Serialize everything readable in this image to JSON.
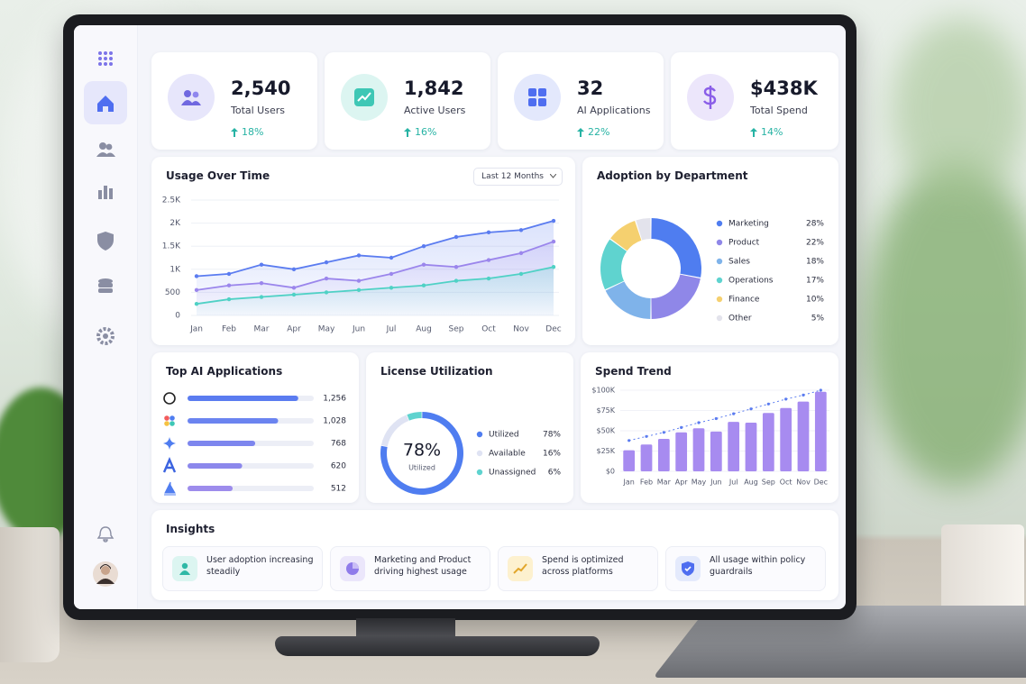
{
  "kpis": [
    {
      "value": "2,540",
      "label": "Total Users",
      "change": "18%"
    },
    {
      "value": "1,842",
      "label": "Active Users",
      "change": "16%"
    },
    {
      "value": "32",
      "label": "AI Applications",
      "change": "22%"
    },
    {
      "value": "$438K",
      "label": "Total Spend",
      "change": "14%"
    }
  ],
  "usage_over_time": {
    "type": "line",
    "title": "Usage Over Time",
    "range_selector": "Last 12 Months",
    "categories": [
      "Jan",
      "Feb",
      "Mar",
      "Apr",
      "May",
      "Jun",
      "Jul",
      "Aug",
      "Sep",
      "Oct",
      "Nov",
      "Dec"
    ],
    "series": [
      {
        "color": "#5b7cf0",
        "values": [
          850,
          900,
          1100,
          1000,
          1150,
          1300,
          1250,
          1500,
          1700,
          1800,
          1850,
          2050
        ]
      },
      {
        "color": "#9b86ec",
        "values": [
          550,
          650,
          700,
          600,
          800,
          750,
          900,
          1100,
          1050,
          1200,
          1350,
          1600
        ]
      },
      {
        "color": "#4fd1c5",
        "values": [
          250,
          350,
          400,
          450,
          500,
          550,
          600,
          650,
          750,
          800,
          900,
          1050
        ]
      }
    ],
    "ylim": [
      0,
      2500
    ],
    "yticks": [
      0,
      500,
      {
        "value": 1000,
        "label": "1K"
      },
      {
        "value": 1500,
        "label": "1.5K"
      },
      {
        "value": 2000,
        "label": "2K"
      },
      {
        "value": 2500,
        "label": "2.5K"
      }
    ],
    "grid": true,
    "area": true
  },
  "adoption_by_department": {
    "type": "donut",
    "title": "Adoption by Department",
    "categories": [
      "Marketing",
      "Product",
      "Sales",
      "Operations",
      "Finance",
      "Other"
    ],
    "values": [
      28,
      22,
      18,
      17,
      10,
      5
    ],
    "value_labels": [
      "28%",
      "22%",
      "18%",
      "17%",
      "10%",
      "5%"
    ],
    "colors": [
      "#4f7df0",
      "#8f87e8",
      "#7fb3ea",
      "#5fd3cf",
      "#f5d06f",
      "#e3e3ec"
    ]
  },
  "top_ai_applications": {
    "type": "bar",
    "title": "Top AI Applications",
    "values": [
      1256,
      1028,
      768,
      620,
      512
    ],
    "value_labels": [
      "1,256",
      "1,028",
      "768",
      "620",
      "512"
    ],
    "colors": [
      "#5b7cf0",
      "#6b84f0",
      "#7d86ee",
      "#8c88ec",
      "#9d8cec"
    ]
  },
  "license_utilization": {
    "type": "donut",
    "title": "License Utilization",
    "categories": [
      "Utilized",
      "Available",
      "Unassigned"
    ],
    "values": [
      78,
      16,
      6
    ],
    "value_labels": [
      "78%",
      "16%",
      "6%"
    ],
    "colors": [
      "#4f7df0",
      "#dfe3f3",
      "#5fd3cf"
    ]
  },
  "spend_trend": {
    "type": "bar",
    "title": "Spend Trend",
    "categories": [
      "Jan",
      "Feb",
      "Mar",
      "Apr",
      "May",
      "Jun",
      "Jul",
      "Aug",
      "Sep",
      "Oct",
      "Nov",
      "Dec"
    ],
    "series": [
      {
        "type": "bar",
        "color": "#a78bf0",
        "values": [
          26000,
          33000,
          40000,
          48000,
          53000,
          49000,
          61000,
          60000,
          72000,
          78000,
          86000,
          98000
        ]
      },
      {
        "type": "line",
        "color": "#5b7cf0",
        "dashed": true,
        "values": [
          38000,
          43000,
          48000,
          54000,
          60000,
          65000,
          71000,
          77000,
          83000,
          89000,
          94000,
          100000
        ]
      }
    ],
    "ylim": [
      0,
      100000
    ],
    "yticks": [
      {
        "value": 0,
        "label": "$0"
      },
      {
        "value": 25000,
        "label": "$25K"
      },
      {
        "value": 50000,
        "label": "$50K"
      },
      {
        "value": 75000,
        "label": "$75K"
      },
      {
        "value": 100000,
        "label": "$100K"
      }
    ]
  },
  "insights": {
    "title": "Insights",
    "items": [
      "User adoption increasing steadily",
      "Marketing and Product driving highest usage",
      "Spend is optimized across platforms",
      "All usage within policy guardrails"
    ]
  }
}
